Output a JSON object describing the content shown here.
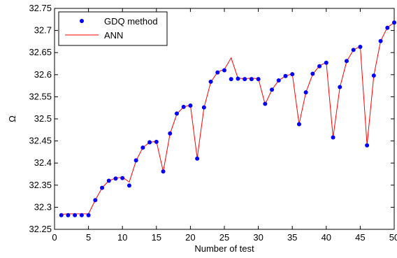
{
  "chart_data": {
    "type": "line",
    "xlabel": "Number of test",
    "ylabel": "Ω",
    "xlim": [
      0,
      50
    ],
    "ylim": [
      32.25,
      32.75
    ],
    "xticks": [
      "0",
      "5",
      "10",
      "15",
      "20",
      "25",
      "30",
      "35",
      "40",
      "45",
      "50"
    ],
    "yticks": [
      "32.25",
      "32.3",
      "32.35",
      "32.4",
      "32.45",
      "32.5",
      "32.55",
      "32.6",
      "32.65",
      "32.7",
      "32.75"
    ],
    "grid": false,
    "legend_position": "top-left",
    "series": [
      {
        "name": "GDQ method",
        "style": "markers",
        "color": "#0000ff",
        "x": [
          1,
          2,
          3,
          4,
          5,
          6,
          7,
          8,
          9,
          10,
          11,
          12,
          13,
          14,
          15,
          16,
          17,
          18,
          19,
          20,
          21,
          22,
          23,
          24,
          25,
          26,
          27,
          28,
          29,
          30,
          31,
          32,
          33,
          34,
          35,
          36,
          37,
          38,
          39,
          40,
          41,
          42,
          43,
          44,
          45,
          46,
          47,
          48,
          49,
          50
        ],
        "y": [
          32.282,
          32.282,
          32.282,
          32.282,
          32.282,
          32.316,
          32.344,
          32.36,
          32.365,
          32.366,
          32.349,
          32.406,
          32.435,
          32.447,
          32.448,
          32.381,
          32.467,
          32.512,
          32.527,
          32.53,
          32.41,
          32.526,
          32.584,
          32.605,
          32.61,
          32.59,
          32.591,
          32.59,
          32.59,
          32.59,
          32.534,
          32.566,
          32.587,
          32.597,
          32.601,
          32.488,
          32.56,
          32.602,
          32.619,
          32.627,
          32.458,
          32.572,
          32.631,
          32.656,
          32.663,
          32.44,
          32.598,
          32.676,
          32.706,
          32.718
        ]
      },
      {
        "name": "ANN",
        "style": "line",
        "color": "#ff0000",
        "x": [
          1,
          2,
          3,
          4,
          5,
          6,
          7,
          8,
          9,
          10,
          11,
          12,
          13,
          14,
          15,
          16,
          17,
          18,
          19,
          20,
          21,
          22,
          23,
          24,
          25,
          26,
          27,
          28,
          29,
          30,
          31,
          32,
          33,
          34,
          35,
          36,
          37,
          38,
          39,
          40,
          41,
          42,
          43,
          44,
          45,
          46,
          47,
          48,
          49,
          50
        ],
        "y": [
          32.284,
          32.285,
          32.285,
          32.285,
          32.285,
          32.316,
          32.344,
          32.36,
          32.366,
          32.368,
          32.357,
          32.405,
          32.435,
          32.447,
          32.449,
          32.381,
          32.466,
          32.511,
          32.527,
          32.531,
          32.411,
          32.525,
          32.583,
          32.606,
          32.612,
          32.638,
          32.592,
          32.591,
          32.592,
          32.591,
          32.533,
          32.566,
          32.587,
          32.597,
          32.602,
          32.488,
          32.56,
          32.601,
          32.62,
          32.628,
          32.458,
          32.571,
          32.63,
          32.656,
          32.664,
          32.441,
          32.598,
          32.676,
          32.707,
          32.718
        ]
      }
    ]
  }
}
